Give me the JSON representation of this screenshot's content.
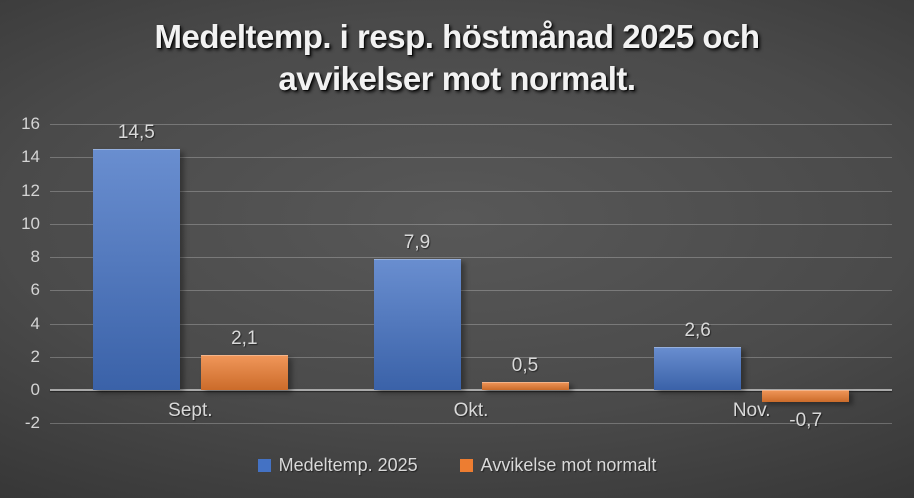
{
  "title": {
    "text": "Medeltemp. i resp. höstmånad 2025 och avvikelser mot normalt.",
    "lines": [
      "Medeltemp. i resp. höstmånad 2025 och",
      "avvikelser mot normalt."
    ]
  },
  "chart_data": {
    "type": "bar",
    "title": "Medeltemp. i resp. höstmånad 2025 och avvikelser mot normalt.",
    "categories": [
      "Sept.",
      "Okt.",
      "Nov."
    ],
    "series": [
      {
        "name": "Medeltemp. 2025",
        "color": "#4472C4",
        "values": [
          14.5,
          7.9,
          2.6
        ],
        "labels": [
          "14,5",
          "7,9",
          "2,6"
        ]
      },
      {
        "name": "Avvikelse mot normalt",
        "color": "#ED7D31",
        "values": [
          2.1,
          0.5,
          -0.7
        ],
        "labels": [
          "2,1",
          "0,5",
          "-0,7"
        ]
      }
    ],
    "ylim": [
      -2,
      16
    ],
    "yticks": [
      16,
      14,
      12,
      10,
      8,
      6,
      4,
      2,
      0,
      -2
    ],
    "grid": true,
    "legend_position": "bottom",
    "data_labels": true
  },
  "colors": {
    "series_blue": "#4472C4",
    "series_orange": "#ED7D31",
    "label_text": "#D9D9D9",
    "title_text": "#F2F2F2",
    "gridline": "#6F6F6F",
    "axis_line": "#A9A9A9",
    "background_center": "#585858",
    "background_edge": "#1D1D1D"
  }
}
